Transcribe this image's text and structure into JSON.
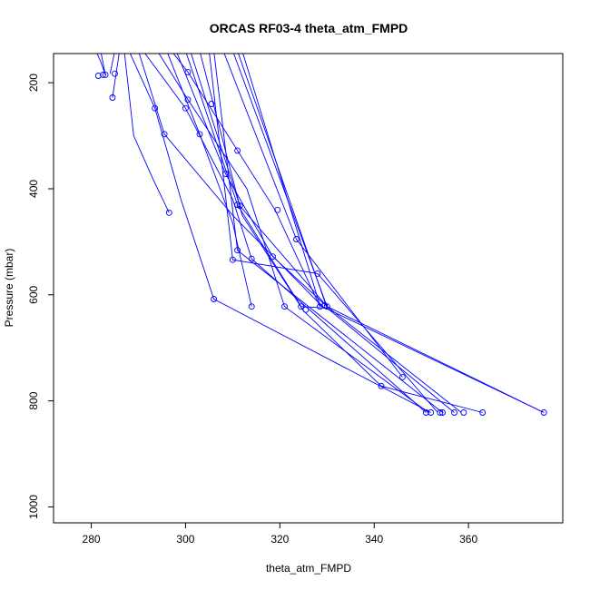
{
  "chart_data": {
    "type": "line",
    "title": "ORCAS RF03-4 theta_atm_FMPD",
    "xlabel": "theta_atm_FMPD",
    "ylabel": "Pressure (mbar)",
    "xlim": [
      272,
      380
    ],
    "ylim": [
      1030,
      145
    ],
    "y_reversed": true,
    "x_ticks": [
      280,
      300,
      320,
      340,
      360
    ],
    "y_ticks": [
      200,
      400,
      600,
      800,
      1000
    ],
    "grid": false,
    "line_color": "#0000ff",
    "series": [
      {
        "x": [
          281,
          282,
          283
        ],
        "y": [
          140,
          160,
          185
        ]
      },
      {
        "x": [
          282,
          283
        ],
        "y": [
          140,
          185
        ]
      },
      {
        "x": [
          285,
          284
        ],
        "y": [
          140,
          183
        ]
      },
      {
        "x": [
          286,
          284.5
        ],
        "y": [
          140,
          228
        ]
      },
      {
        "x": [
          287,
          289,
          293,
          296.5
        ],
        "y": [
          140,
          300,
          380,
          445
        ]
      },
      {
        "x": [
          288,
          293.5,
          299,
          306,
          352
        ],
        "y": [
          140,
          248,
          420,
          608,
          822
        ]
      },
      {
        "x": [
          290,
          295.5,
          310,
          329
        ],
        "y": [
          140,
          297,
          450,
          622
        ]
      },
      {
        "x": [
          291,
          300,
          310,
          314,
          351
        ],
        "y": [
          140,
          248,
          420,
          532,
          822
        ]
      },
      {
        "x": [
          294,
          300.5,
          313,
          321,
          351.5
        ],
        "y": [
          140,
          232,
          400,
          622,
          822
        ]
      },
      {
        "x": [
          296,
          303,
          310,
          314
        ],
        "y": [
          140,
          297,
          465,
          622
        ]
      },
      {
        "x": [
          297,
          300.5,
          319,
          328.5
        ],
        "y": [
          140,
          180,
          440,
          622
        ]
      },
      {
        "x": [
          298,
          308.5,
          318.5,
          330,
          376
        ],
        "y": [
          140,
          372,
          528,
          622,
          822
        ]
      },
      {
        "x": [
          300,
          311,
          324.5,
          330
        ],
        "y": [
          140,
          430,
          622,
          625
        ]
      },
      {
        "x": [
          301,
          311.5,
          330,
          358.5
        ],
        "y": [
          140,
          432,
          622,
          822
        ]
      },
      {
        "x": [
          303,
          312,
          325,
          341.5,
          363
        ],
        "y": [
          140,
          450,
          630,
          772,
          822
        ]
      },
      {
        "x": [
          305,
          310,
          328,
          353.5
        ],
        "y": [
          140,
          534,
          560,
          822
        ]
      },
      {
        "x": [
          306,
          311,
          354.5
        ],
        "y": [
          140,
          516,
          822
        ]
      },
      {
        "x": [
          308,
          323.5,
          346
        ],
        "y": [
          140,
          495,
          755
        ]
      },
      {
        "x": [
          310,
          330
        ],
        "y": [
          140,
          622
        ]
      },
      {
        "x": [
          311,
          330,
          357
        ],
        "y": [
          140,
          625,
          822
        ]
      },
      {
        "x": [
          312,
          328.5,
          376
        ],
        "y": [
          140,
          620,
          822
        ]
      }
    ],
    "points": [
      [
        281.5,
        187
      ],
      [
        282.5,
        185
      ],
      [
        283,
        185
      ],
      [
        285,
        183
      ],
      [
        284.5,
        228
      ],
      [
        300.5,
        180
      ],
      [
        305.5,
        240
      ],
      [
        300.5,
        232
      ],
      [
        293.5,
        248
      ],
      [
        300,
        248
      ],
      [
        295.5,
        297
      ],
      [
        303,
        297
      ],
      [
        311,
        328
      ],
      [
        308.5,
        372
      ],
      [
        319.5,
        440
      ],
      [
        311,
        430
      ],
      [
        311.5,
        432
      ],
      [
        296.5,
        445
      ],
      [
        323.5,
        495
      ],
      [
        311,
        516
      ],
      [
        318.5,
        528
      ],
      [
        310,
        534
      ],
      [
        314,
        532
      ],
      [
        328,
        560
      ],
      [
        306,
        608
      ],
      [
        314,
        622
      ],
      [
        321,
        622
      ],
      [
        324.5,
        622
      ],
      [
        325.5,
        628
      ],
      [
        328.5,
        622
      ],
      [
        329.5,
        620
      ],
      [
        330,
        622
      ],
      [
        346,
        755
      ],
      [
        341.5,
        772
      ],
      [
        351,
        822
      ],
      [
        352,
        822
      ],
      [
        354,
        822
      ],
      [
        354.5,
        822
      ],
      [
        357,
        822
      ],
      [
        359,
        822
      ],
      [
        363,
        822
      ],
      [
        376,
        822
      ]
    ]
  }
}
